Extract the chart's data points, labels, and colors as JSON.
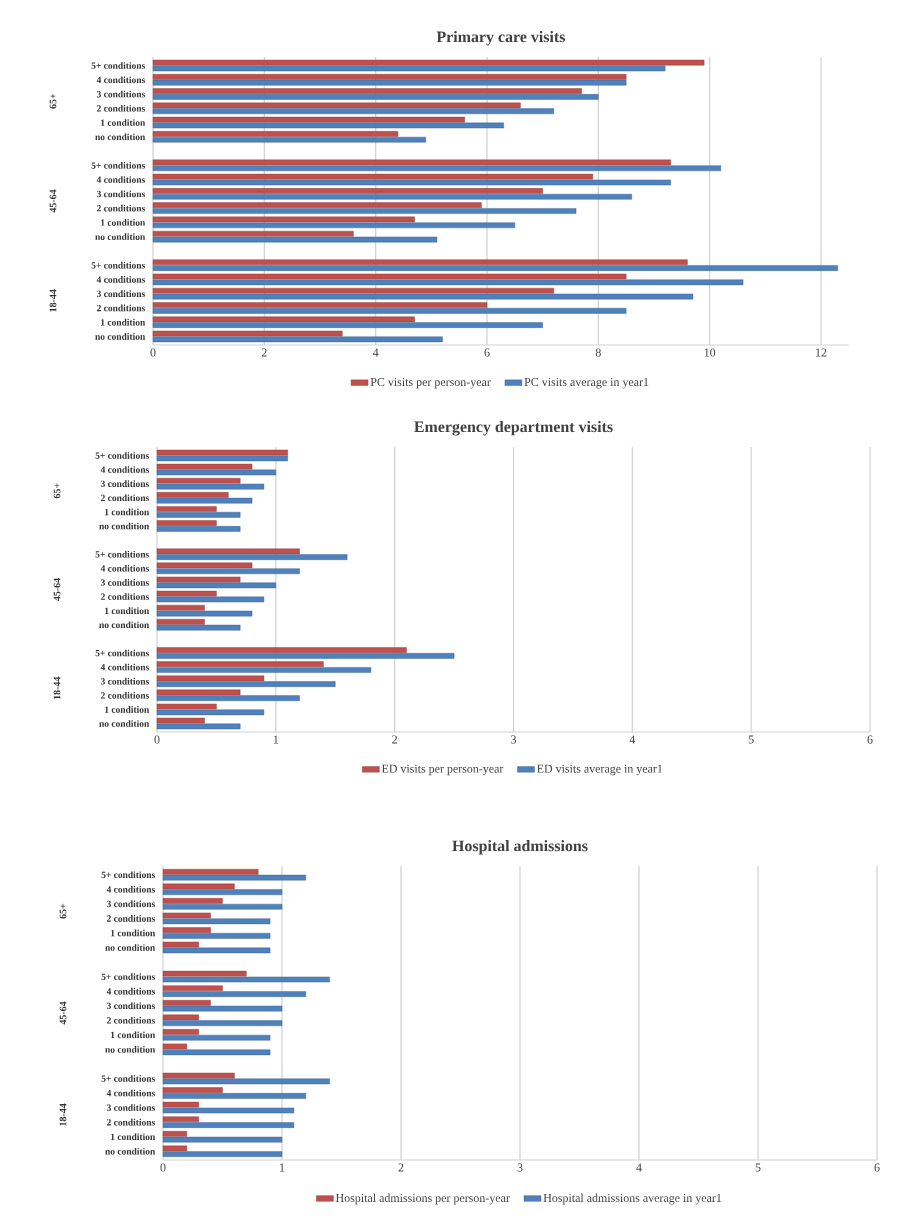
{
  "chart_data": [
    {
      "type": "bar",
      "orientation": "horizontal",
      "title": "Primary care visits",
      "categories": [
        "5+ conditions",
        "4 conditions",
        "3 conditions",
        "2 conditions",
        "1 condition",
        "no condition",
        null,
        "5+ conditions",
        "4 conditions",
        "3 conditions",
        "2 conditions",
        "1 condition",
        "no condition",
        null,
        "5+ conditions",
        "4 conditions",
        "3 conditions",
        "2 conditions",
        "1 condition",
        "no condition"
      ],
      "series": [
        {
          "name": "PC visits per person-year",
          "color": "#c0504d",
          "values": [
            9.9,
            8.5,
            7.7,
            6.6,
            5.6,
            4.4,
            null,
            9.3,
            7.9,
            7.0,
            5.9,
            4.7,
            3.6,
            null,
            9.6,
            8.5,
            7.2,
            6.0,
            4.7,
            3.4
          ]
        },
        {
          "name": "PC visits average in year1",
          "color": "#4f81bd",
          "values": [
            9.2,
            8.5,
            8.0,
            7.2,
            6.3,
            4.9,
            null,
            10.2,
            9.3,
            8.6,
            7.6,
            6.5,
            5.1,
            null,
            12.3,
            10.6,
            9.7,
            8.5,
            7.0,
            5.2
          ]
        }
      ],
      "annotations": [
        "65+",
        "45-64",
        "18-44"
      ],
      "xlim": [
        0,
        12.5
      ],
      "xticks": [
        0,
        2,
        4,
        6,
        8,
        10,
        12
      ],
      "grid": "x",
      "legend": "bottom"
    },
    {
      "type": "bar",
      "orientation": "horizontal",
      "title": "Emergency department visits",
      "categories": [
        "5+ conditions",
        "4 conditions",
        "3 conditions",
        "2 conditions",
        "1 condition",
        "no condition",
        null,
        "5+ conditions",
        "4 conditions",
        "3 conditions",
        "2 conditions",
        "1 condition",
        "no condition",
        null,
        "5+ conditions",
        "4 conditions",
        "3 conditions",
        "2 conditions",
        "1 condition",
        "no condition"
      ],
      "series": [
        {
          "name": "ED visits per person-year",
          "color": "#c0504d",
          "values": [
            1.1,
            0.8,
            0.7,
            0.6,
            0.5,
            0.5,
            null,
            1.2,
            0.8,
            0.7,
            0.5,
            0.4,
            0.4,
            null,
            2.1,
            1.4,
            0.9,
            0.7,
            0.5,
            0.4
          ]
        },
        {
          "name": "ED visits average in year1",
          "color": "#4f81bd",
          "values": [
            1.1,
            1.0,
            0.9,
            0.8,
            0.7,
            0.7,
            null,
            1.6,
            1.2,
            1.0,
            0.9,
            0.8,
            0.7,
            null,
            2.5,
            1.8,
            1.5,
            1.2,
            0.9,
            0.7
          ]
        }
      ],
      "annotations": [
        "65+",
        "45-64",
        "18-44"
      ],
      "xlim": [
        0,
        6
      ],
      "xticks": [
        0,
        1,
        2,
        3,
        4,
        5,
        6
      ],
      "grid": "x",
      "legend": "bottom"
    },
    {
      "type": "bar",
      "orientation": "horizontal",
      "title": "Hospital admissions",
      "categories": [
        "5+ conditions",
        "4 conditions",
        "3 conditions",
        "2 conditions",
        "1 condition",
        "no condition",
        null,
        "5+ conditions",
        "4 conditions",
        "3 conditions",
        "2 conditions",
        "1 condition",
        "no condition",
        null,
        "5+ conditions",
        "4 conditions",
        "3 conditions",
        "2 conditions",
        "1 condition",
        "no condition"
      ],
      "series": [
        {
          "name": "Hospital admissions per person-year",
          "color": "#c0504d",
          "values": [
            0.8,
            0.6,
            0.5,
            0.4,
            0.4,
            0.3,
            null,
            0.7,
            0.5,
            0.4,
            0.3,
            0.3,
            0.2,
            null,
            0.6,
            0.5,
            0.3,
            0.3,
            0.2,
            0.2
          ]
        },
        {
          "name": "Hospital admissions average in year1",
          "color": "#4f81bd",
          "values": [
            1.2,
            1.0,
            1.0,
            0.9,
            0.9,
            0.9,
            null,
            1.4,
            1.2,
            1.0,
            1.0,
            0.9,
            0.9,
            null,
            1.4,
            1.2,
            1.1,
            1.1,
            1.0,
            1.0
          ]
        }
      ],
      "annotations": [
        "65+",
        "45-64",
        "18-44"
      ],
      "xlim": [
        0,
        6
      ],
      "xticks": [
        0,
        1,
        2,
        3,
        4,
        5,
        6
      ],
      "grid": "x",
      "legend": "bottom"
    }
  ]
}
